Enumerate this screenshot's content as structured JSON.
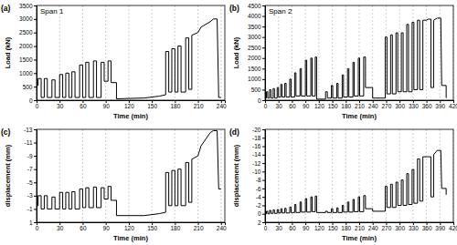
{
  "chart_data": [
    {
      "type": "line",
      "title": "Span 1",
      "annotations": [
        "(a)"
      ],
      "x_label": "Time (min)",
      "y_label": "Load (kN)",
      "color": "#000000",
      "grid": true,
      "xlim": [
        0,
        245
      ],
      "xticks": [
        0,
        30,
        60,
        90,
        120,
        150,
        180,
        210,
        240
      ],
      "ylim": [
        0,
        3500
      ],
      "yticks": [
        0,
        500,
        1000,
        1500,
        2000,
        2500,
        3000,
        3500
      ],
      "x": [
        0,
        2,
        2,
        6,
        6,
        10,
        10,
        14,
        14,
        20,
        20,
        24,
        24,
        30,
        30,
        34,
        34,
        38,
        38,
        42,
        42,
        46,
        46,
        50,
        50,
        56,
        56,
        60,
        60,
        64,
        64,
        68,
        68,
        74,
        74,
        78,
        78,
        84,
        84,
        88,
        88,
        93,
        93,
        97,
        97,
        104,
        104,
        140,
        160,
        168,
        168,
        172,
        172,
        176,
        176,
        180,
        180,
        184,
        184,
        188,
        188,
        194,
        194,
        198,
        198,
        202,
        202,
        210,
        214,
        220,
        226,
        230,
        235,
        237,
        240
      ],
      "values": [
        550,
        550,
        800,
        800,
        100,
        100,
        800,
        800,
        100,
        100,
        750,
        750,
        100,
        100,
        950,
        950,
        100,
        100,
        1000,
        1000,
        100,
        100,
        1050,
        1050,
        100,
        100,
        1300,
        1300,
        100,
        100,
        1400,
        1400,
        100,
        100,
        1450,
        1450,
        100,
        100,
        1400,
        1400,
        700,
        700,
        1450,
        1450,
        650,
        650,
        50,
        80,
        150,
        200,
        1800,
        1800,
        300,
        300,
        1900,
        1900,
        300,
        300,
        2000,
        2000,
        300,
        300,
        2300,
        2300,
        400,
        400,
        2400,
        2500,
        2700,
        2800,
        2900,
        3000,
        3000,
        100,
        100
      ]
    },
    {
      "type": "line",
      "title": "Span 2",
      "annotations": [
        "(b)"
      ],
      "x_label": "Time (min)",
      "y_label": "Load (kN)",
      "color": "#000000",
      "grid": true,
      "xlim": [
        0,
        420
      ],
      "xticks": [
        0,
        30,
        60,
        90,
        120,
        150,
        180,
        210,
        240,
        270,
        300,
        330,
        360,
        390,
        420
      ],
      "ylim": [
        0,
        4500
      ],
      "yticks": [
        0,
        500,
        1000,
        1500,
        2000,
        2500,
        3000,
        3500,
        4000,
        4500
      ],
      "x": [
        0,
        3,
        3,
        6,
        6,
        10,
        10,
        13,
        13,
        18,
        18,
        21,
        21,
        27,
        27,
        30,
        30,
        35,
        35,
        38,
        38,
        44,
        44,
        47,
        47,
        55,
        55,
        58,
        58,
        66,
        66,
        69,
        69,
        78,
        78,
        81,
        81,
        90,
        90,
        93,
        93,
        102,
        102,
        105,
        105,
        112,
        112,
        115,
        115,
        135,
        135,
        139,
        139,
        148,
        148,
        151,
        151,
        160,
        160,
        163,
        163,
        172,
        172,
        175,
        175,
        184,
        184,
        187,
        187,
        196,
        196,
        199,
        199,
        208,
        208,
        211,
        211,
        220,
        220,
        224,
        224,
        240,
        240,
        268,
        268,
        272,
        272,
        280,
        280,
        284,
        284,
        292,
        292,
        296,
        296,
        304,
        304,
        308,
        308,
        316,
        316,
        320,
        320,
        328,
        328,
        332,
        332,
        340,
        340,
        345,
        345,
        352,
        352,
        360,
        364,
        370,
        370,
        376,
        376,
        384,
        392,
        394,
        404,
        404
      ],
      "values": [
        100,
        100,
        400,
        400,
        100,
        100,
        500,
        500,
        100,
        100,
        550,
        550,
        100,
        100,
        600,
        600,
        150,
        150,
        750,
        750,
        150,
        150,
        800,
        800,
        150,
        150,
        1000,
        1000,
        150,
        150,
        1300,
        1300,
        200,
        200,
        1500,
        1500,
        200,
        200,
        1900,
        1900,
        200,
        200,
        2000,
        2000,
        200,
        200,
        2050,
        2050,
        50,
        50,
        400,
        400,
        100,
        100,
        700,
        700,
        100,
        100,
        800,
        800,
        100,
        100,
        1200,
        1200,
        150,
        150,
        1500,
        1500,
        150,
        150,
        1800,
        1800,
        200,
        200,
        2000,
        2000,
        200,
        200,
        2050,
        2050,
        600,
        600,
        100,
        100,
        3000,
        3000,
        300,
        300,
        3100,
        3100,
        300,
        300,
        3200,
        3200,
        400,
        400,
        3200,
        3200,
        400,
        400,
        3600,
        3600,
        400,
        400,
        3700,
        3700,
        500,
        500,
        3800,
        3800,
        500,
        500,
        3800,
        3800,
        3850,
        3850,
        600,
        600,
        3800,
        3900,
        3900,
        700,
        700,
        100
      ]
    },
    {
      "type": "line",
      "annotations": [
        "(c)"
      ],
      "x_label": "Time (min)",
      "y_label": "displacement (mm)",
      "color": "#000000",
      "grid": true,
      "xlim": [
        0,
        245
      ],
      "xticks": [
        0,
        30,
        60,
        90,
        120,
        150,
        180,
        210,
        240
      ],
      "ylim": [
        1,
        -13
      ],
      "yticks": [
        1,
        -1,
        -3,
        -5,
        -7,
        -9,
        -11,
        -13
      ],
      "x": [
        0,
        2,
        2,
        6,
        6,
        10,
        10,
        14,
        14,
        20,
        20,
        24,
        24,
        30,
        30,
        34,
        34,
        38,
        38,
        42,
        42,
        46,
        46,
        50,
        50,
        56,
        56,
        60,
        60,
        64,
        64,
        68,
        68,
        74,
        74,
        78,
        78,
        84,
        84,
        88,
        88,
        93,
        93,
        97,
        97,
        104,
        104,
        140,
        160,
        168,
        168,
        172,
        172,
        176,
        176,
        180,
        180,
        184,
        184,
        188,
        188,
        194,
        194,
        198,
        198,
        202,
        202,
        210,
        214,
        220,
        226,
        230,
        235,
        237,
        240
      ],
      "values": [
        -1.5,
        -1.5,
        -3,
        -3,
        -1,
        -1,
        -3,
        -3,
        -1,
        -1,
        -2.8,
        -2.8,
        -1,
        -1,
        -3.5,
        -3.5,
        -1,
        -1,
        -3.5,
        -3.5,
        -1,
        -1,
        -3.6,
        -3.6,
        -1,
        -1,
        -4,
        -4,
        -1.2,
        -1.2,
        -4.2,
        -4.2,
        -1.2,
        -1.2,
        -4.3,
        -4.3,
        -1.2,
        -1.2,
        -4.2,
        -4.2,
        -2.5,
        -2.5,
        -4.4,
        -4.4,
        -2.3,
        -2.3,
        0,
        0,
        -0.3,
        -0.5,
        -6.5,
        -6.5,
        -1.5,
        -1.5,
        -6.8,
        -6.8,
        -1.5,
        -1.5,
        -7,
        -7,
        -1.5,
        -1.5,
        -8,
        -8,
        -2,
        -2,
        -8.5,
        -9,
        -10.5,
        -11.5,
        -12.5,
        -12.8,
        -12.8,
        -4,
        -4
      ]
    },
    {
      "type": "line",
      "annotations": [
        "(d)"
      ],
      "x_label": "Time (min)",
      "y_label": "displacement (mm)",
      "color": "#000000",
      "grid": true,
      "xlim": [
        0,
        420
      ],
      "xticks": [
        0,
        30,
        60,
        90,
        120,
        150,
        180,
        210,
        240,
        270,
        300,
        330,
        360,
        390,
        420
      ],
      "ylim": [
        2,
        -20
      ],
      "yticks": [
        2,
        0,
        -2,
        -4,
        -6,
        -8,
        -10,
        -12,
        -14,
        -16,
        -18,
        -20
      ],
      "x": [
        0,
        3,
        3,
        6,
        6,
        10,
        10,
        13,
        13,
        18,
        18,
        21,
        21,
        27,
        27,
        30,
        30,
        35,
        35,
        38,
        38,
        44,
        44,
        47,
        47,
        55,
        55,
        58,
        58,
        66,
        66,
        69,
        69,
        78,
        78,
        81,
        81,
        90,
        90,
        93,
        93,
        102,
        102,
        105,
        105,
        112,
        112,
        115,
        115,
        135,
        135,
        139,
        139,
        148,
        148,
        151,
        151,
        160,
        160,
        163,
        163,
        172,
        172,
        175,
        175,
        184,
        184,
        187,
        187,
        196,
        196,
        199,
        199,
        208,
        208,
        211,
        211,
        220,
        220,
        224,
        224,
        240,
        240,
        268,
        268,
        272,
        272,
        280,
        280,
        284,
        284,
        292,
        292,
        296,
        296,
        304,
        304,
        308,
        308,
        316,
        316,
        320,
        320,
        328,
        328,
        332,
        332,
        340,
        340,
        345,
        345,
        352,
        352,
        360,
        364,
        370,
        370,
        376,
        376,
        384,
        392,
        394,
        404,
        404
      ],
      "values": [
        0,
        0,
        -0.6,
        -0.6,
        0,
        0,
        -0.8,
        -0.8,
        -0.1,
        -0.1,
        -0.9,
        -0.9,
        -0.1,
        -0.1,
        -1,
        -1,
        -0.2,
        -0.2,
        -1.2,
        -1.2,
        -0.2,
        -0.2,
        -1.3,
        -1.3,
        -0.2,
        -0.2,
        -1.6,
        -1.6,
        -0.3,
        -0.3,
        -2.2,
        -2.2,
        -0.3,
        -0.3,
        -2.8,
        -2.8,
        -0.4,
        -0.4,
        -3.6,
        -3.6,
        -0.4,
        -0.4,
        -4,
        -4,
        -0.5,
        -0.5,
        -4.2,
        -4.2,
        -0.3,
        -0.3,
        -0.6,
        -0.6,
        -0.3,
        -0.3,
        -1.2,
        -1.2,
        -0.3,
        -0.3,
        -1.4,
        -1.4,
        -0.3,
        -0.3,
        -2,
        -2,
        -0.4,
        -0.4,
        -2.8,
        -2.8,
        -0.4,
        -0.4,
        -3.4,
        -3.4,
        -0.5,
        -0.5,
        -4,
        -4,
        -0.5,
        -0.5,
        -4.3,
        -4.3,
        -1.2,
        -1.2,
        -0.6,
        -0.6,
        -6.5,
        -6.5,
        -1.5,
        -1.5,
        -7,
        -7,
        -1.5,
        -1.5,
        -7.5,
        -7.5,
        -2,
        -2,
        -8,
        -8,
        -2,
        -2,
        -9.5,
        -9.5,
        -2.2,
        -2.2,
        -10.5,
        -10.5,
        -2.5,
        -2.5,
        -13,
        -13,
        -3,
        -3,
        -13.5,
        -13.5,
        -13.5,
        -13.5,
        -4,
        -4,
        -14,
        -15,
        -15,
        -6,
        -6,
        -4.5
      ]
    }
  ]
}
